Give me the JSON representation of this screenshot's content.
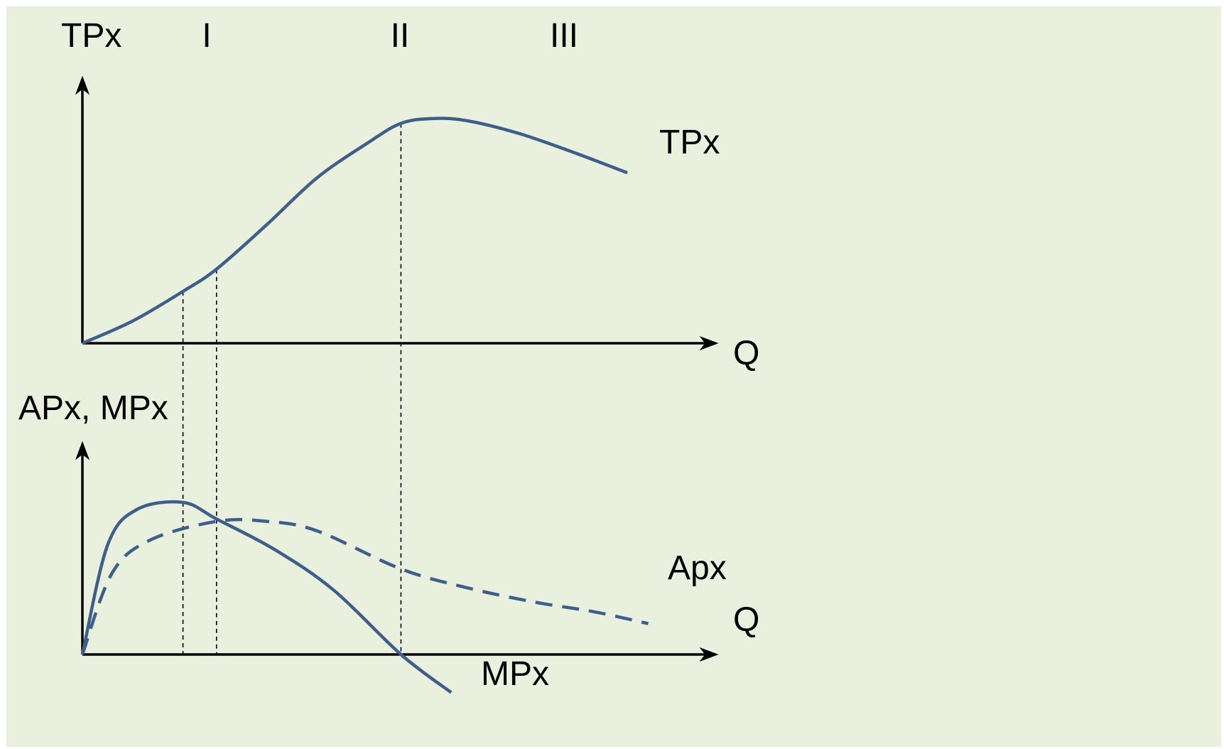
{
  "colors": {
    "background": "#e9f0dd",
    "curve": "#3e5f8a",
    "axis": "#000000",
    "guide": "#000000"
  },
  "stage_labels": [
    "I",
    "II",
    "III"
  ],
  "chart_data": [
    {
      "type": "line",
      "title": "",
      "ylabel": "TPx",
      "xlabel": "Q",
      "series": [
        {
          "name": "TPx",
          "style": "solid",
          "points": [
            [
              0,
              0
            ],
            [
              0.6,
              0.9
            ],
            [
              1.2,
              2.1
            ],
            [
              1.6,
              3.0
            ],
            [
              2.2,
              4.8
            ],
            [
              2.8,
              6.7
            ],
            [
              3.4,
              8.1
            ],
            [
              3.8,
              8.9
            ],
            [
              4.2,
              9.1
            ],
            [
              4.6,
              9.0
            ],
            [
              5.2,
              8.5
            ],
            [
              5.8,
              7.8
            ],
            [
              6.5,
              6.9
            ]
          ]
        }
      ],
      "guides_x": [
        1.2,
        1.6,
        3.8
      ],
      "xlim": [
        0,
        7.5
      ],
      "ylim": [
        0,
        10.5
      ],
      "grid": false
    },
    {
      "type": "line",
      "title": "",
      "ylabel": "APx, MPx",
      "xlabel": "Q",
      "series": [
        {
          "name": "Apx",
          "style": "dashed",
          "points": [
            [
              0,
              0
            ],
            [
              0.35,
              3.4
            ],
            [
              0.8,
              4.8
            ],
            [
              1.6,
              5.6
            ],
            [
              2.2,
              5.6
            ],
            [
              2.8,
              5.2
            ],
            [
              3.8,
              3.6
            ],
            [
              4.6,
              2.8
            ],
            [
              5.4,
              2.2
            ],
            [
              6.1,
              1.8
            ],
            [
              6.75,
              1.3
            ]
          ]
        },
        {
          "name": "MPx",
          "style": "solid",
          "points": [
            [
              0,
              0
            ],
            [
              0.3,
              4.6
            ],
            [
              0.65,
              6.1
            ],
            [
              1.2,
              6.4
            ],
            [
              1.6,
              5.7
            ],
            [
              2.3,
              4.4
            ],
            [
              3.0,
              2.7
            ],
            [
              3.8,
              0
            ],
            [
              4.4,
              -1.6
            ]
          ]
        }
      ],
      "guides_x": [
        1.2,
        1.6,
        3.8
      ],
      "xlim": [
        0,
        7.5
      ],
      "ylim": [
        -2,
        9
      ],
      "grid": false
    }
  ]
}
